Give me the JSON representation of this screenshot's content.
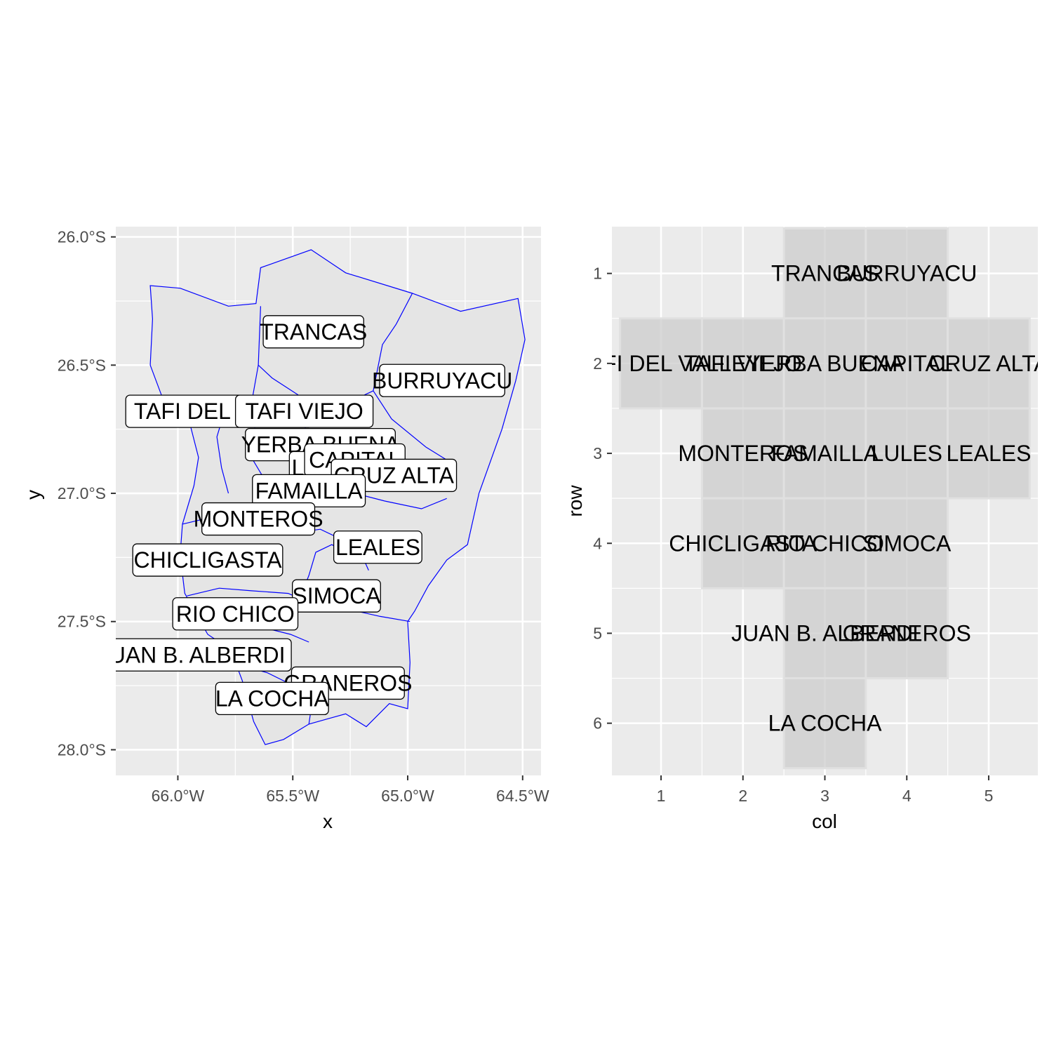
{
  "chart_data": [
    {
      "type": "map",
      "xlabel": "x",
      "ylabel": "y",
      "xlim": [
        -66.27,
        -64.42
      ],
      "ylim": [
        -28.1,
        -25.96
      ],
      "x_ticks": [
        {
          "value": -66.0,
          "label": "66.0°W"
        },
        {
          "value": -65.5,
          "label": "65.5°W"
        },
        {
          "value": -65.0,
          "label": "65.0°W"
        },
        {
          "value": -64.5,
          "label": "64.5°W"
        }
      ],
      "y_ticks": [
        {
          "value": -26.0,
          "label": "26.0°S"
        },
        {
          "value": -26.5,
          "label": "26.5°S"
        },
        {
          "value": -27.0,
          "label": "27.0°S"
        },
        {
          "value": -27.5,
          "label": "27.5°S"
        },
        {
          "value": -28.0,
          "label": "28.0°S"
        }
      ],
      "border_color": "#0000ff",
      "fill_color": "#e5e5e5",
      "outline": [
        [
          -65.64,
          -26.12
        ],
        [
          -65.42,
          -26.05
        ],
        [
          -65.27,
          -26.14
        ],
        [
          -64.98,
          -26.22
        ],
        [
          -64.77,
          -26.29
        ],
        [
          -64.52,
          -26.24
        ],
        [
          -64.49,
          -26.4
        ],
        [
          -64.53,
          -26.56
        ],
        [
          -64.59,
          -26.75
        ],
        [
          -64.69,
          -27.0
        ],
        [
          -64.74,
          -27.2
        ],
        [
          -64.83,
          -27.26
        ],
        [
          -64.91,
          -27.36
        ],
        [
          -64.97,
          -27.46
        ],
        [
          -65.0,
          -27.5
        ],
        [
          -64.99,
          -27.66
        ],
        [
          -65.0,
          -27.84
        ],
        [
          -65.08,
          -27.82
        ],
        [
          -65.18,
          -27.91
        ],
        [
          -65.27,
          -27.86
        ],
        [
          -65.35,
          -27.88
        ],
        [
          -65.43,
          -27.9
        ],
        [
          -65.54,
          -27.96
        ],
        [
          -65.62,
          -27.98
        ],
        [
          -65.67,
          -27.89
        ],
        [
          -65.72,
          -27.73
        ],
        [
          -65.77,
          -27.61
        ],
        [
          -65.87,
          -27.55
        ],
        [
          -65.97,
          -27.39
        ],
        [
          -65.99,
          -27.24
        ],
        [
          -65.98,
          -27.12
        ],
        [
          -65.93,
          -26.97
        ],
        [
          -65.91,
          -26.86
        ],
        [
          -65.95,
          -26.72
        ],
        [
          -66.07,
          -26.62
        ],
        [
          -66.12,
          -26.5
        ],
        [
          -66.11,
          -26.32
        ],
        [
          -66.12,
          -26.19
        ],
        [
          -65.99,
          -26.2
        ],
        [
          -65.78,
          -26.27
        ],
        [
          -65.66,
          -26.26
        ]
      ],
      "inner_borders": [
        [
          [
            -65.64,
            -26.27
          ],
          [
            -65.65,
            -26.5
          ],
          [
            -65.59,
            -26.55
          ],
          [
            -65.47,
            -26.62
          ],
          [
            -65.42,
            -26.64
          ],
          [
            -65.22,
            -26.63
          ],
          [
            -65.15,
            -26.6
          ]
        ],
        [
          [
            -65.15,
            -26.6
          ],
          [
            -65.11,
            -26.42
          ],
          [
            -65.05,
            -26.34
          ],
          [
            -64.98,
            -26.22
          ]
        ],
        [
          [
            -65.15,
            -26.6
          ],
          [
            -65.07,
            -26.71
          ],
          [
            -64.92,
            -26.82
          ],
          [
            -64.83,
            -26.87
          ]
        ],
        [
          [
            -65.65,
            -26.5
          ],
          [
            -65.68,
            -26.65
          ],
          [
            -65.66,
            -26.78
          ],
          [
            -65.68,
            -26.86
          ],
          [
            -65.62,
            -26.95
          ]
        ],
        [
          [
            -65.78,
            -26.63
          ],
          [
            -65.83,
            -26.78
          ],
          [
            -65.81,
            -26.9
          ],
          [
            -65.78,
            -27.0
          ]
        ],
        [
          [
            -65.55,
            -26.7
          ],
          [
            -65.46,
            -26.73
          ],
          [
            -65.4,
            -26.79
          ],
          [
            -65.32,
            -26.82
          ],
          [
            -65.28,
            -26.84
          ],
          [
            -65.24,
            -26.93
          ],
          [
            -65.18,
            -26.96
          ]
        ],
        [
          [
            -65.6,
            -26.96
          ],
          [
            -65.47,
            -27.02
          ],
          [
            -65.36,
            -27.04
          ],
          [
            -65.23,
            -27.0
          ],
          [
            -65.1,
            -27.03
          ],
          [
            -64.94,
            -27.06
          ],
          [
            -64.83,
            -27.02
          ]
        ],
        [
          [
            -65.78,
            -27.1
          ],
          [
            -65.66,
            -27.15
          ],
          [
            -65.54,
            -27.16
          ],
          [
            -65.38,
            -27.14
          ],
          [
            -65.31,
            -27.17
          ],
          [
            -65.21,
            -27.22
          ],
          [
            -65.17,
            -27.3
          ]
        ],
        [
          [
            -65.98,
            -27.12
          ],
          [
            -65.84,
            -27.09
          ]
        ],
        [
          [
            -65.96,
            -27.4
          ],
          [
            -65.82,
            -27.37
          ],
          [
            -65.68,
            -27.38
          ],
          [
            -65.52,
            -27.39
          ],
          [
            -65.47,
            -27.41
          ]
        ],
        [
          [
            -65.47,
            -27.41
          ],
          [
            -65.43,
            -27.32
          ],
          [
            -65.4,
            -27.23
          ],
          [
            -65.33,
            -27.2
          ],
          [
            -65.24,
            -27.25
          ]
        ],
        [
          [
            -65.47,
            -27.41
          ],
          [
            -65.38,
            -27.44
          ],
          [
            -65.22,
            -27.46
          ],
          [
            -65.12,
            -27.48
          ],
          [
            -64.99,
            -27.5
          ]
        ],
        [
          [
            -65.73,
            -27.47
          ],
          [
            -65.6,
            -27.53
          ],
          [
            -65.51,
            -27.55
          ],
          [
            -65.43,
            -27.58
          ]
        ],
        [
          [
            -65.8,
            -27.59
          ],
          [
            -65.69,
            -27.68
          ],
          [
            -65.61,
            -27.7
          ],
          [
            -65.52,
            -27.74
          ],
          [
            -65.44,
            -27.73
          ],
          [
            -65.38,
            -27.72
          ],
          [
            -65.24,
            -27.73
          ],
          [
            -65.08,
            -27.79
          ]
        ],
        [
          [
            -65.38,
            -27.72
          ],
          [
            -65.42,
            -27.84
          ],
          [
            -65.43,
            -27.9
          ]
        ]
      ],
      "labels": [
        {
          "text": "TRANCAS",
          "x": -65.41,
          "y": -26.37
        },
        {
          "text": "BURRUYACU",
          "x": -64.85,
          "y": -26.56
        },
        {
          "text": "TAFI DEL VALLE",
          "x": -65.82,
          "y": -26.68
        },
        {
          "text": "TAFI VIEJO",
          "x": -65.45,
          "y": -26.68
        },
        {
          "text": "YERBA BUENA",
          "x": -65.38,
          "y": -26.81
        },
        {
          "text": "LULES",
          "x": -65.35,
          "y": -26.9
        },
        {
          "text": "CAPITAL",
          "x": -65.23,
          "y": -26.87
        },
        {
          "text": "CRUZ ALTA",
          "x": -65.06,
          "y": -26.93
        },
        {
          "text": "FAMAILLA",
          "x": -65.43,
          "y": -26.99
        },
        {
          "text": "MONTEROS",
          "x": -65.65,
          "y": -27.1
        },
        {
          "text": "LEALES",
          "x": -65.13,
          "y": -27.21
        },
        {
          "text": "CHICLIGASTA",
          "x": -65.87,
          "y": -27.26
        },
        {
          "text": "SIMOCA",
          "x": -65.31,
          "y": -27.4
        },
        {
          "text": "RIO CHICO",
          "x": -65.75,
          "y": -27.47
        },
        {
          "text": "JUAN B. ALBERDI",
          "x": -65.94,
          "y": -27.63
        },
        {
          "text": "GRANEROS",
          "x": -65.26,
          "y": -27.74
        },
        {
          "text": "LA COCHA",
          "x": -65.59,
          "y": -27.8
        }
      ]
    },
    {
      "type": "tile",
      "xlabel": "col",
      "ylabel": "row",
      "xlim": [
        0.4,
        5.6
      ],
      "ylim": [
        0.48,
        6.58
      ],
      "x_ticks": [
        1,
        2,
        3,
        4,
        5
      ],
      "y_ticks": [
        1,
        2,
        3,
        4,
        5,
        6
      ],
      "tile_color": "#cccccc",
      "tiles": [
        {
          "name": "TRANCAS",
          "col": 3,
          "row": 1
        },
        {
          "name": "BURRUYACU",
          "col": 4,
          "row": 1
        },
        {
          "name": "TAFI DEL VALLE",
          "col": 1,
          "row": 2
        },
        {
          "name": "TAFI VIEJO",
          "col": 2,
          "row": 2
        },
        {
          "name": "YERBA BUENA",
          "col": 3,
          "row": 2
        },
        {
          "name": "CAPITAL",
          "col": 4,
          "row": 2
        },
        {
          "name": "CRUZ ALTA",
          "col": 5,
          "row": 2
        },
        {
          "name": "MONTEROS",
          "col": 2,
          "row": 3
        },
        {
          "name": "FAMAILLA",
          "col": 3,
          "row": 3
        },
        {
          "name": "LULES",
          "col": 4,
          "row": 3
        },
        {
          "name": "LEALES",
          "col": 5,
          "row": 3
        },
        {
          "name": "CHICLIGASTA",
          "col": 2,
          "row": 4
        },
        {
          "name": "RIO CHICO",
          "col": 3,
          "row": 4
        },
        {
          "name": "SIMOCA",
          "col": 4,
          "row": 4
        },
        {
          "name": "JUAN B. ALBERDI",
          "col": 3,
          "row": 5
        },
        {
          "name": "GRANEROS",
          "col": 4,
          "row": 5
        },
        {
          "name": "LA COCHA",
          "col": 3,
          "row": 6
        }
      ]
    }
  ]
}
